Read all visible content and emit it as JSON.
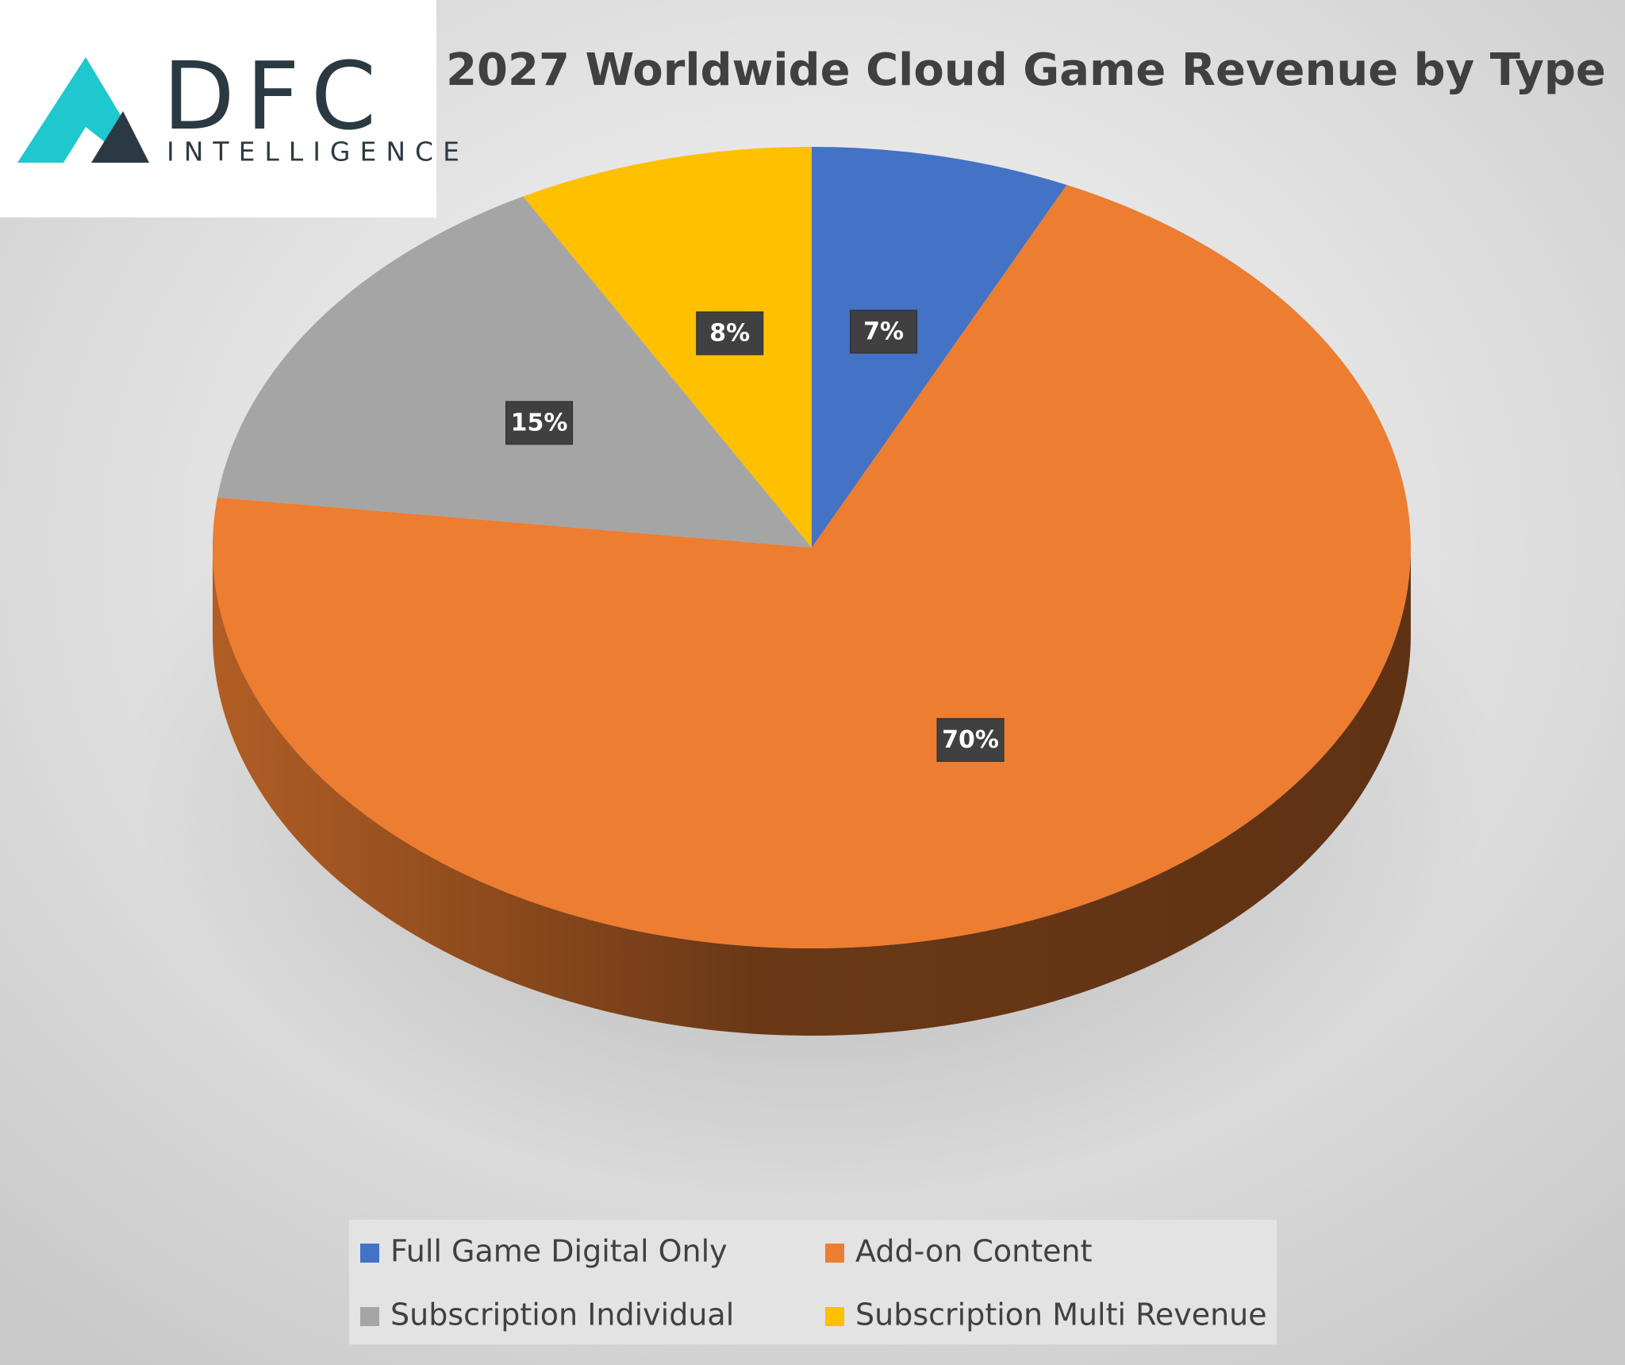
{
  "chart_data": {
    "type": "pie",
    "title": "2027 Worldwide Cloud Game Revenue by Type",
    "logo": {
      "name": "DFC",
      "tagline": "INTELLIGENCE"
    },
    "categories": [
      "Full Game Digital Only",
      "Add-on Content",
      "Subscription Individual",
      "Subscription Multi Revenue"
    ],
    "values": [
      7,
      70,
      15,
      8
    ],
    "value_labels": [
      "7%",
      "70%",
      "15%",
      "8%"
    ],
    "colors": [
      "#4472c4",
      "#ed7d31",
      "#a5a5a5",
      "#ffc000"
    ]
  }
}
